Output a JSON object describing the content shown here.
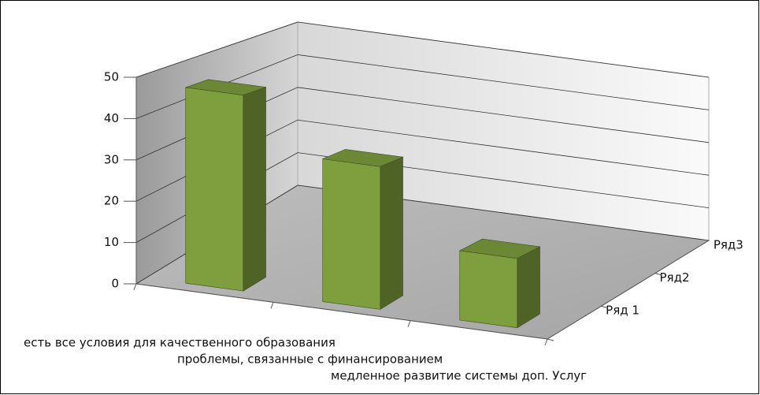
{
  "chart_data": {
    "type": "bar3d",
    "categories": [
      "есть все условия для качественного образования",
      "проблемы, связанные с финансированием",
      "медленное развитие системы доп. Услуг"
    ],
    "series": [
      {
        "name": "Ряд 1",
        "color": "#7f9f3f",
        "values": [
          48,
          35,
          17
        ]
      },
      {
        "name": "Ряд2",
        "color": "#c0504d",
        "values": [
          null,
          null,
          null
        ]
      },
      {
        "name": "Ряд3",
        "color": "#4f81bd",
        "values": [
          null,
          null,
          null
        ]
      }
    ],
    "ylim": [
      0,
      50
    ],
    "yticks": [
      0,
      10,
      20,
      30,
      40,
      50
    ],
    "grid": true
  }
}
